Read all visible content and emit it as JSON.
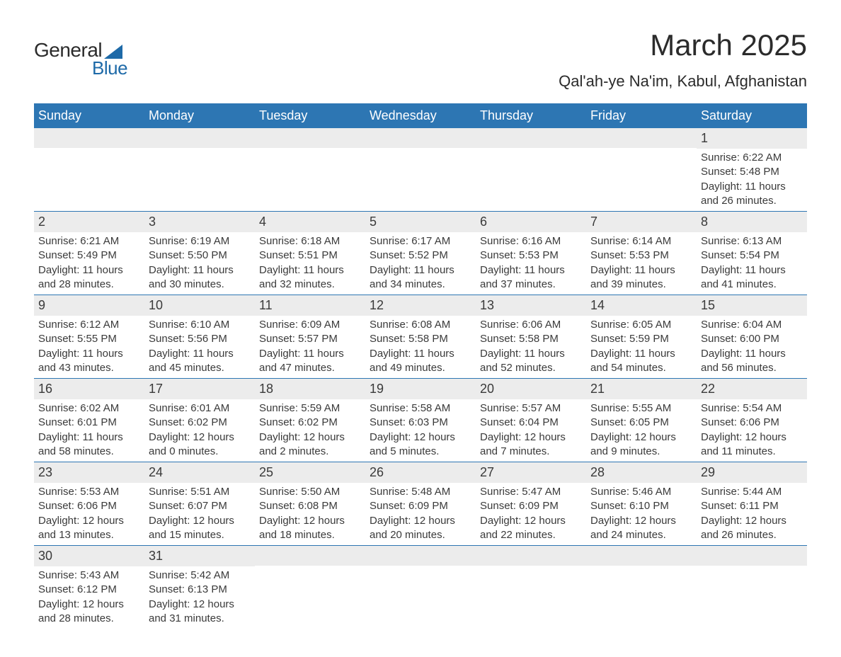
{
  "logo": {
    "text_general": "General",
    "text_blue": "Blue",
    "triangle_color": "#1e6aa8"
  },
  "header": {
    "month_title": "March 2025",
    "location": "Qal'ah-ye Na'im, Kabul, Afghanistan"
  },
  "colors": {
    "header_bg": "#2d76b3",
    "header_text": "#ffffff",
    "daynum_bg": "#ececec",
    "text_color": "#3a3a3a",
    "row_border": "#2d76b3",
    "background": "#ffffff",
    "logo_blue": "#1e6aa8"
  },
  "typography": {
    "title_fontsize": 42,
    "location_fontsize": 22,
    "header_fontsize": 18,
    "daynum_fontsize": 18,
    "detail_fontsize": 15,
    "font_family": "Arial"
  },
  "layout": {
    "columns": 7,
    "aspect_w": 1188,
    "aspect_h": 918
  },
  "day_headers": [
    "Sunday",
    "Monday",
    "Tuesday",
    "Wednesday",
    "Thursday",
    "Friday",
    "Saturday"
  ],
  "weeks": [
    [
      {
        "empty": true
      },
      {
        "empty": true
      },
      {
        "empty": true
      },
      {
        "empty": true
      },
      {
        "empty": true
      },
      {
        "empty": true
      },
      {
        "day": "1",
        "sunrise": "Sunrise: 6:22 AM",
        "sunset": "Sunset: 5:48 PM",
        "daylight1": "Daylight: 11 hours",
        "daylight2": "and 26 minutes."
      }
    ],
    [
      {
        "day": "2",
        "sunrise": "Sunrise: 6:21 AM",
        "sunset": "Sunset: 5:49 PM",
        "daylight1": "Daylight: 11 hours",
        "daylight2": "and 28 minutes."
      },
      {
        "day": "3",
        "sunrise": "Sunrise: 6:19 AM",
        "sunset": "Sunset: 5:50 PM",
        "daylight1": "Daylight: 11 hours",
        "daylight2": "and 30 minutes."
      },
      {
        "day": "4",
        "sunrise": "Sunrise: 6:18 AM",
        "sunset": "Sunset: 5:51 PM",
        "daylight1": "Daylight: 11 hours",
        "daylight2": "and 32 minutes."
      },
      {
        "day": "5",
        "sunrise": "Sunrise: 6:17 AM",
        "sunset": "Sunset: 5:52 PM",
        "daylight1": "Daylight: 11 hours",
        "daylight2": "and 34 minutes."
      },
      {
        "day": "6",
        "sunrise": "Sunrise: 6:16 AM",
        "sunset": "Sunset: 5:53 PM",
        "daylight1": "Daylight: 11 hours",
        "daylight2": "and 37 minutes."
      },
      {
        "day": "7",
        "sunrise": "Sunrise: 6:14 AM",
        "sunset": "Sunset: 5:53 PM",
        "daylight1": "Daylight: 11 hours",
        "daylight2": "and 39 minutes."
      },
      {
        "day": "8",
        "sunrise": "Sunrise: 6:13 AM",
        "sunset": "Sunset: 5:54 PM",
        "daylight1": "Daylight: 11 hours",
        "daylight2": "and 41 minutes."
      }
    ],
    [
      {
        "day": "9",
        "sunrise": "Sunrise: 6:12 AM",
        "sunset": "Sunset: 5:55 PM",
        "daylight1": "Daylight: 11 hours",
        "daylight2": "and 43 minutes."
      },
      {
        "day": "10",
        "sunrise": "Sunrise: 6:10 AM",
        "sunset": "Sunset: 5:56 PM",
        "daylight1": "Daylight: 11 hours",
        "daylight2": "and 45 minutes."
      },
      {
        "day": "11",
        "sunrise": "Sunrise: 6:09 AM",
        "sunset": "Sunset: 5:57 PM",
        "daylight1": "Daylight: 11 hours",
        "daylight2": "and 47 minutes."
      },
      {
        "day": "12",
        "sunrise": "Sunrise: 6:08 AM",
        "sunset": "Sunset: 5:58 PM",
        "daylight1": "Daylight: 11 hours",
        "daylight2": "and 49 minutes."
      },
      {
        "day": "13",
        "sunrise": "Sunrise: 6:06 AM",
        "sunset": "Sunset: 5:58 PM",
        "daylight1": "Daylight: 11 hours",
        "daylight2": "and 52 minutes."
      },
      {
        "day": "14",
        "sunrise": "Sunrise: 6:05 AM",
        "sunset": "Sunset: 5:59 PM",
        "daylight1": "Daylight: 11 hours",
        "daylight2": "and 54 minutes."
      },
      {
        "day": "15",
        "sunrise": "Sunrise: 6:04 AM",
        "sunset": "Sunset: 6:00 PM",
        "daylight1": "Daylight: 11 hours",
        "daylight2": "and 56 minutes."
      }
    ],
    [
      {
        "day": "16",
        "sunrise": "Sunrise: 6:02 AM",
        "sunset": "Sunset: 6:01 PM",
        "daylight1": "Daylight: 11 hours",
        "daylight2": "and 58 minutes."
      },
      {
        "day": "17",
        "sunrise": "Sunrise: 6:01 AM",
        "sunset": "Sunset: 6:02 PM",
        "daylight1": "Daylight: 12 hours",
        "daylight2": "and 0 minutes."
      },
      {
        "day": "18",
        "sunrise": "Sunrise: 5:59 AM",
        "sunset": "Sunset: 6:02 PM",
        "daylight1": "Daylight: 12 hours",
        "daylight2": "and 2 minutes."
      },
      {
        "day": "19",
        "sunrise": "Sunrise: 5:58 AM",
        "sunset": "Sunset: 6:03 PM",
        "daylight1": "Daylight: 12 hours",
        "daylight2": "and 5 minutes."
      },
      {
        "day": "20",
        "sunrise": "Sunrise: 5:57 AM",
        "sunset": "Sunset: 6:04 PM",
        "daylight1": "Daylight: 12 hours",
        "daylight2": "and 7 minutes."
      },
      {
        "day": "21",
        "sunrise": "Sunrise: 5:55 AM",
        "sunset": "Sunset: 6:05 PM",
        "daylight1": "Daylight: 12 hours",
        "daylight2": "and 9 minutes."
      },
      {
        "day": "22",
        "sunrise": "Sunrise: 5:54 AM",
        "sunset": "Sunset: 6:06 PM",
        "daylight1": "Daylight: 12 hours",
        "daylight2": "and 11 minutes."
      }
    ],
    [
      {
        "day": "23",
        "sunrise": "Sunrise: 5:53 AM",
        "sunset": "Sunset: 6:06 PM",
        "daylight1": "Daylight: 12 hours",
        "daylight2": "and 13 minutes."
      },
      {
        "day": "24",
        "sunrise": "Sunrise: 5:51 AM",
        "sunset": "Sunset: 6:07 PM",
        "daylight1": "Daylight: 12 hours",
        "daylight2": "and 15 minutes."
      },
      {
        "day": "25",
        "sunrise": "Sunrise: 5:50 AM",
        "sunset": "Sunset: 6:08 PM",
        "daylight1": "Daylight: 12 hours",
        "daylight2": "and 18 minutes."
      },
      {
        "day": "26",
        "sunrise": "Sunrise: 5:48 AM",
        "sunset": "Sunset: 6:09 PM",
        "daylight1": "Daylight: 12 hours",
        "daylight2": "and 20 minutes."
      },
      {
        "day": "27",
        "sunrise": "Sunrise: 5:47 AM",
        "sunset": "Sunset: 6:09 PM",
        "daylight1": "Daylight: 12 hours",
        "daylight2": "and 22 minutes."
      },
      {
        "day": "28",
        "sunrise": "Sunrise: 5:46 AM",
        "sunset": "Sunset: 6:10 PM",
        "daylight1": "Daylight: 12 hours",
        "daylight2": "and 24 minutes."
      },
      {
        "day": "29",
        "sunrise": "Sunrise: 5:44 AM",
        "sunset": "Sunset: 6:11 PM",
        "daylight1": "Daylight: 12 hours",
        "daylight2": "and 26 minutes."
      }
    ],
    [
      {
        "day": "30",
        "sunrise": "Sunrise: 5:43 AM",
        "sunset": "Sunset: 6:12 PM",
        "daylight1": "Daylight: 12 hours",
        "daylight2": "and 28 minutes."
      },
      {
        "day": "31",
        "sunrise": "Sunrise: 5:42 AM",
        "sunset": "Sunset: 6:13 PM",
        "daylight1": "Daylight: 12 hours",
        "daylight2": "and 31 minutes."
      },
      {
        "empty": true
      },
      {
        "empty": true
      },
      {
        "empty": true
      },
      {
        "empty": true
      },
      {
        "empty": true
      }
    ]
  ]
}
